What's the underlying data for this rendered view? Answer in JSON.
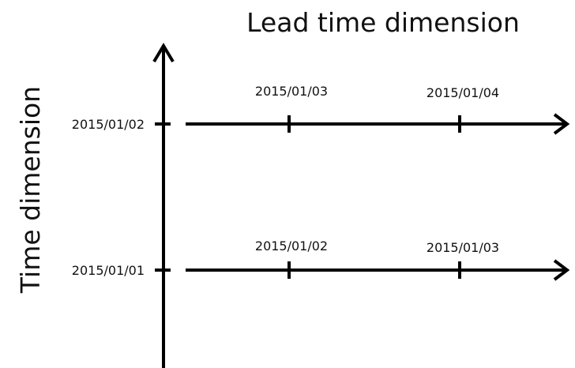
{
  "title": "Lead time dimension",
  "y_axis_label": "Time dimension",
  "rows": [
    {
      "label": "2015/01/02",
      "ticks": [
        "2015/01/03",
        "2015/01/04"
      ]
    },
    {
      "label": "2015/01/01",
      "ticks": [
        "2015/01/02",
        "2015/01/03"
      ]
    }
  ]
}
